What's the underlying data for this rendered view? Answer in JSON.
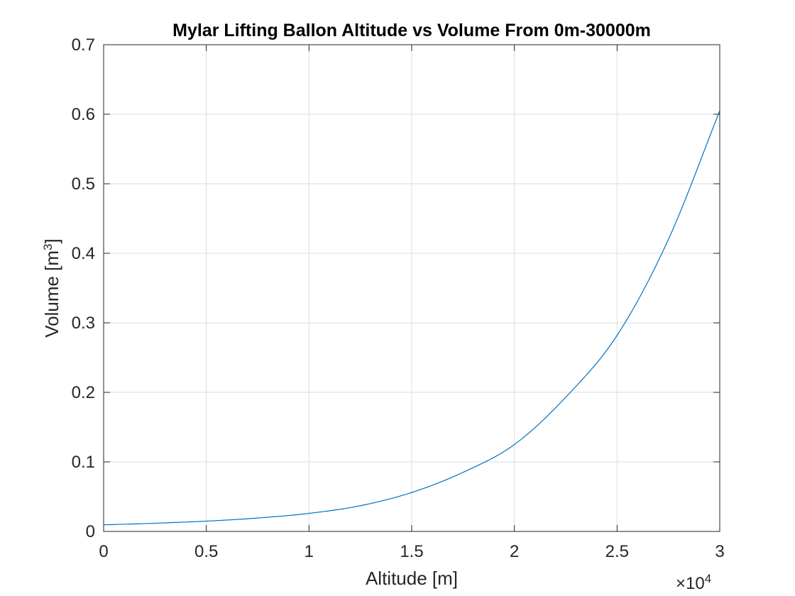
{
  "chart_data": {
    "type": "line",
    "title": "Mylar Lifting Ballon Altitude vs Volume From 0m-30000m",
    "xlabel": "Altitude [m]",
    "ylabel": {
      "text": "Volume [m",
      "superscript": "3",
      "suffix": "]"
    },
    "x_exponent": {
      "prefix": "×10",
      "power": "4"
    },
    "xlim": [
      0,
      30000
    ],
    "ylim": [
      0,
      0.7
    ],
    "xticks": [
      0,
      5000,
      10000,
      15000,
      20000,
      25000,
      30000
    ],
    "xtick_labels": [
      "0",
      "0.5",
      "1",
      "1.5",
      "2",
      "2.5",
      "3"
    ],
    "yticks": [
      0,
      0.1,
      0.2,
      0.3,
      0.4,
      0.5,
      0.6,
      0.7
    ],
    "ytick_labels": [
      "0",
      "0.1",
      "0.2",
      "0.3",
      "0.4",
      "0.5",
      "0.6",
      "0.7"
    ],
    "grid": true,
    "colors": {
      "line": "#0072BD",
      "grid": "#dcdcdc",
      "axis": "#262626"
    },
    "series": [
      {
        "x": [
          0,
          2500,
          5000,
          7500,
          10000,
          12500,
          15000,
          17500,
          20000,
          22500,
          25000,
          27500,
          30000
        ],
        "y": [
          0.0095,
          0.0118,
          0.0148,
          0.0193,
          0.026,
          0.037,
          0.056,
          0.085,
          0.125,
          0.193,
          0.282,
          0.42,
          0.605
        ]
      }
    ]
  }
}
